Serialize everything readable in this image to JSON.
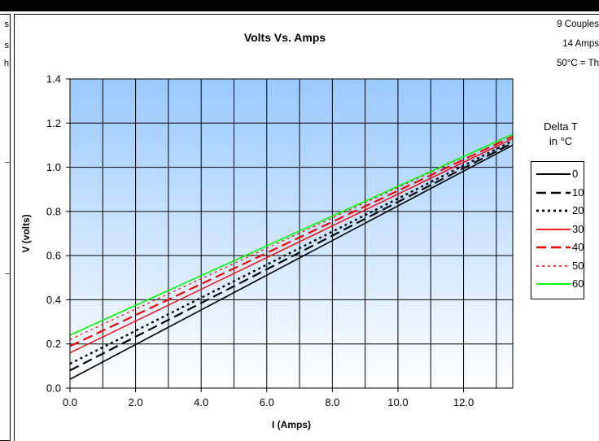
{
  "left_strip": {
    "fragments": [
      "s",
      "s",
      "h"
    ]
  },
  "notes": [
    "9 Couples",
    "14 Amps",
    "50°C = Th"
  ],
  "legend": {
    "title_line1": "Delta T",
    "title_line2": "in °C"
  },
  "colors": {
    "plot_top": "#99c9ff",
    "plot_bottom": "#ffffff",
    "grid": "#000000"
  },
  "chart_data": {
    "type": "line",
    "title": "Volts Vs. Amps",
    "xlabel": "I (Amps)",
    "ylabel": "V (volts)",
    "xlim": [
      0,
      13.5
    ],
    "ylim": [
      0,
      1.4
    ],
    "x_ticks": [
      "0.0",
      "2.0",
      "4.0",
      "6.0",
      "8.0",
      "10.0",
      "12.0"
    ],
    "y_ticks": [
      "0.0",
      "0.2",
      "0.4",
      "0.6",
      "0.8",
      "1.0",
      "1.2",
      "1.4"
    ],
    "x": [
      0,
      13.5
    ],
    "series": [
      {
        "name": "0",
        "values": [
          0.04,
          1.1
        ],
        "color": "#000000",
        "dash": "solid",
        "width": 1.6
      },
      {
        "name": "10",
        "values": [
          0.08,
          1.11
        ],
        "color": "#000000",
        "dash": "dashed",
        "width": 2.2
      },
      {
        "name": "20",
        "values": [
          0.11,
          1.12
        ],
        "color": "#000000",
        "dash": "dotted",
        "width": 2.4
      },
      {
        "name": "30",
        "values": [
          0.16,
          1.13
        ],
        "color": "#ff0000",
        "dash": "solid",
        "width": 1.4
      },
      {
        "name": "40",
        "values": [
          0.19,
          1.14
        ],
        "color": "#ff0000",
        "dash": "dashed",
        "width": 2.2
      },
      {
        "name": "50",
        "values": [
          0.22,
          1.15
        ],
        "color": "#ff0000",
        "dash": "dotted",
        "width": 1.2
      },
      {
        "name": "60",
        "values": [
          0.24,
          1.15
        ],
        "color": "#00ff00",
        "dash": "solid",
        "width": 1.6
      }
    ],
    "grid": true,
    "legend_position": "right"
  }
}
